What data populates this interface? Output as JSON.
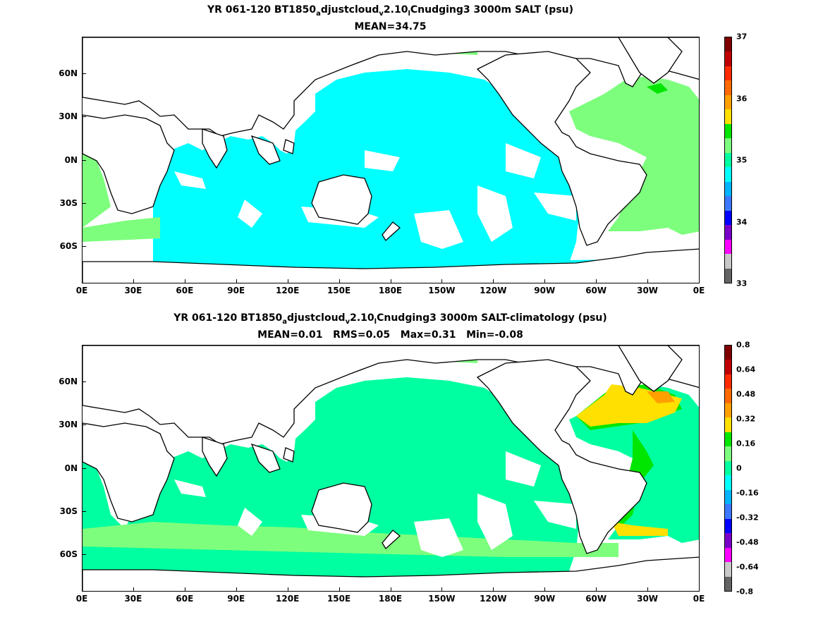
{
  "panel_top": {
    "title_prefix": "YR 061-120 BT1850",
    "title_sub1": "a",
    "title_mid": "djustcloud",
    "title_sub2": "v",
    "title_mid2": "2.10",
    "title_sub3": "l",
    "title_suffix": "Cnudging3 3000m SALT (psu)",
    "stats": "MEAN=34.75",
    "colorbar_labels": [
      "37",
      "36",
      "35",
      "34",
      "33"
    ],
    "colorbar_colors": [
      "#7f0000",
      "#c00000",
      "#ff2a00",
      "#ff6a00",
      "#ffa000",
      "#ffe000",
      "#00e600",
      "#7dff7d",
      "#00ffa0",
      "#00ffff",
      "#00b4ff",
      "#3c78ff",
      "#0000ff",
      "#7800c8",
      "#ff00ff",
      "#c8c8c8",
      "#646464"
    ]
  },
  "panel_bottom": {
    "title_prefix": "YR 061-120 BT1850",
    "title_sub1": "a",
    "title_mid": "djustcloud",
    "title_sub2": "v",
    "title_mid2": "2.10",
    "title_sub3": "l",
    "title_suffix": "Cnudging3 3000m SALT-climatology (psu)",
    "stats": "MEAN=0.01   RMS=0.05   Max=0.31   Min=-0.08",
    "colorbar_labels": [
      "0.8",
      "0.64",
      "0.48",
      "0.32",
      "0.16",
      "0",
      "-0.16",
      "-0.32",
      "-0.48",
      "-0.64",
      "-0.8"
    ],
    "colorbar_colors": [
      "#7f0000",
      "#c00000",
      "#ff2a00",
      "#ff6a00",
      "#ffa000",
      "#ffe000",
      "#00e600",
      "#7dff7d",
      "#00ffa0",
      "#00ffff",
      "#00b4ff",
      "#3c78ff",
      "#0000ff",
      "#7800c8",
      "#ff00ff",
      "#c8c8c8",
      "#646464"
    ]
  },
  "axes": {
    "x_ticks": [
      "0E",
      "30E",
      "60E",
      "90E",
      "120E",
      "150E",
      "180E",
      "150W",
      "120W",
      "90W",
      "60W",
      "30W",
      "0E"
    ],
    "y_ticks": [
      "60N",
      "30N",
      "0N",
      "30S",
      "60S"
    ]
  },
  "map_data": {
    "top_fields": {
      "pacific_indian": "#00ffff",
      "atlantic": "#7dff7d",
      "atlantic_north": "#00e600"
    },
    "bottom_fields": {
      "base": "#00ffa0",
      "southern_band": "#7dff7d",
      "atlantic_north": "#00e600",
      "atlantic_yellow": "#ffe000",
      "atlantic_orange": "#ffa000"
    }
  }
}
